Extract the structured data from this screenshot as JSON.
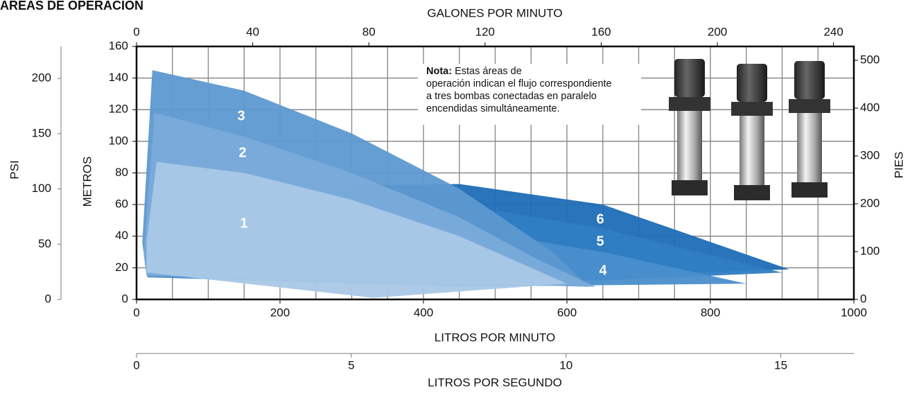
{
  "chart_data": {
    "type": "area",
    "title": "ÁREAS DE OPERACIÓN",
    "xlabel": "LITROS POR MINUTO",
    "ylabel": "METROS",
    "xlim": [
      0,
      1000
    ],
    "xticks": [
      0,
      200,
      400,
      600,
      800,
      1000
    ],
    "ylim": [
      0,
      160
    ],
    "yticks": [
      0,
      20,
      40,
      60,
      80,
      100,
      120,
      140,
      160
    ],
    "x_gridlines": [
      0,
      50,
      100,
      150,
      200,
      250,
      300,
      350,
      400,
      450,
      500,
      550,
      600,
      650,
      700,
      750,
      800,
      850,
      900,
      950,
      1000
    ],
    "grid": true,
    "top_axis": {
      "label": "GALONES POR MINUTO",
      "lim": [
        0,
        247
      ],
      "ticks": [
        0,
        40,
        80,
        120,
        160,
        200,
        240
      ]
    },
    "right_axis": {
      "label": "PIES",
      "lim": [
        0,
        529
      ],
      "ticks": [
        0,
        100,
        200,
        300,
        400,
        500
      ]
    },
    "left_outer_axis": {
      "label": "PSI",
      "lim": [
        0,
        229
      ],
      "ticks": [
        0,
        50,
        100,
        150,
        200
      ]
    },
    "bottom_outer_axis": {
      "label": "LITROS POR SEGUNDO",
      "lim": [
        0,
        16.7
      ],
      "ticks": [
        0,
        5,
        10,
        15
      ]
    },
    "series": [
      {
        "name": "1",
        "color": "#a9c8e6",
        "x": [
          14,
          28,
          150,
          300,
          450,
          600,
          330,
          14
        ],
        "y": [
          37,
          87,
          80,
          63,
          40,
          10,
          1,
          17
        ]
      },
      {
        "name": "2",
        "color": "#7aabd9",
        "x": [
          10,
          25,
          150,
          300,
          450,
          560,
          640,
          14
        ],
        "y": [
          28,
          118,
          103,
          80,
          52,
          25,
          8,
          15
        ]
      },
      {
        "name": "3",
        "color": "#5d99d0",
        "x": [
          8,
          22,
          150,
          300,
          450,
          580,
          630,
          14
        ],
        "y": [
          36,
          145,
          132,
          105,
          70,
          30,
          8,
          16
        ]
      },
      {
        "name": "4",
        "color": "#4a8ecc",
        "x": [
          15,
          300,
          450,
          650,
          850,
          450,
          15
        ],
        "y": [
          20,
          45,
          45,
          30,
          10,
          8,
          14
        ]
      },
      {
        "name": "5",
        "color": "#2f7dc2",
        "x": [
          20,
          300,
          450,
          650,
          900,
          650,
          20
        ],
        "y": [
          22,
          60,
          60,
          45,
          17,
          12,
          18
        ]
      },
      {
        "name": "6",
        "color": "#1e6db6",
        "x": [
          25,
          300,
          450,
          650,
          910,
          650,
          25
        ],
        "y": [
          25,
          72,
          73,
          60,
          19,
          15,
          20
        ]
      }
    ],
    "note": {
      "label": "Nota:",
      "lines": [
        "Estas áreas de",
        "operación indican el flujo correspondiente",
        "a tres bombas conectadas en paralelo",
        "encendidas simultáneamente."
      ]
    }
  }
}
